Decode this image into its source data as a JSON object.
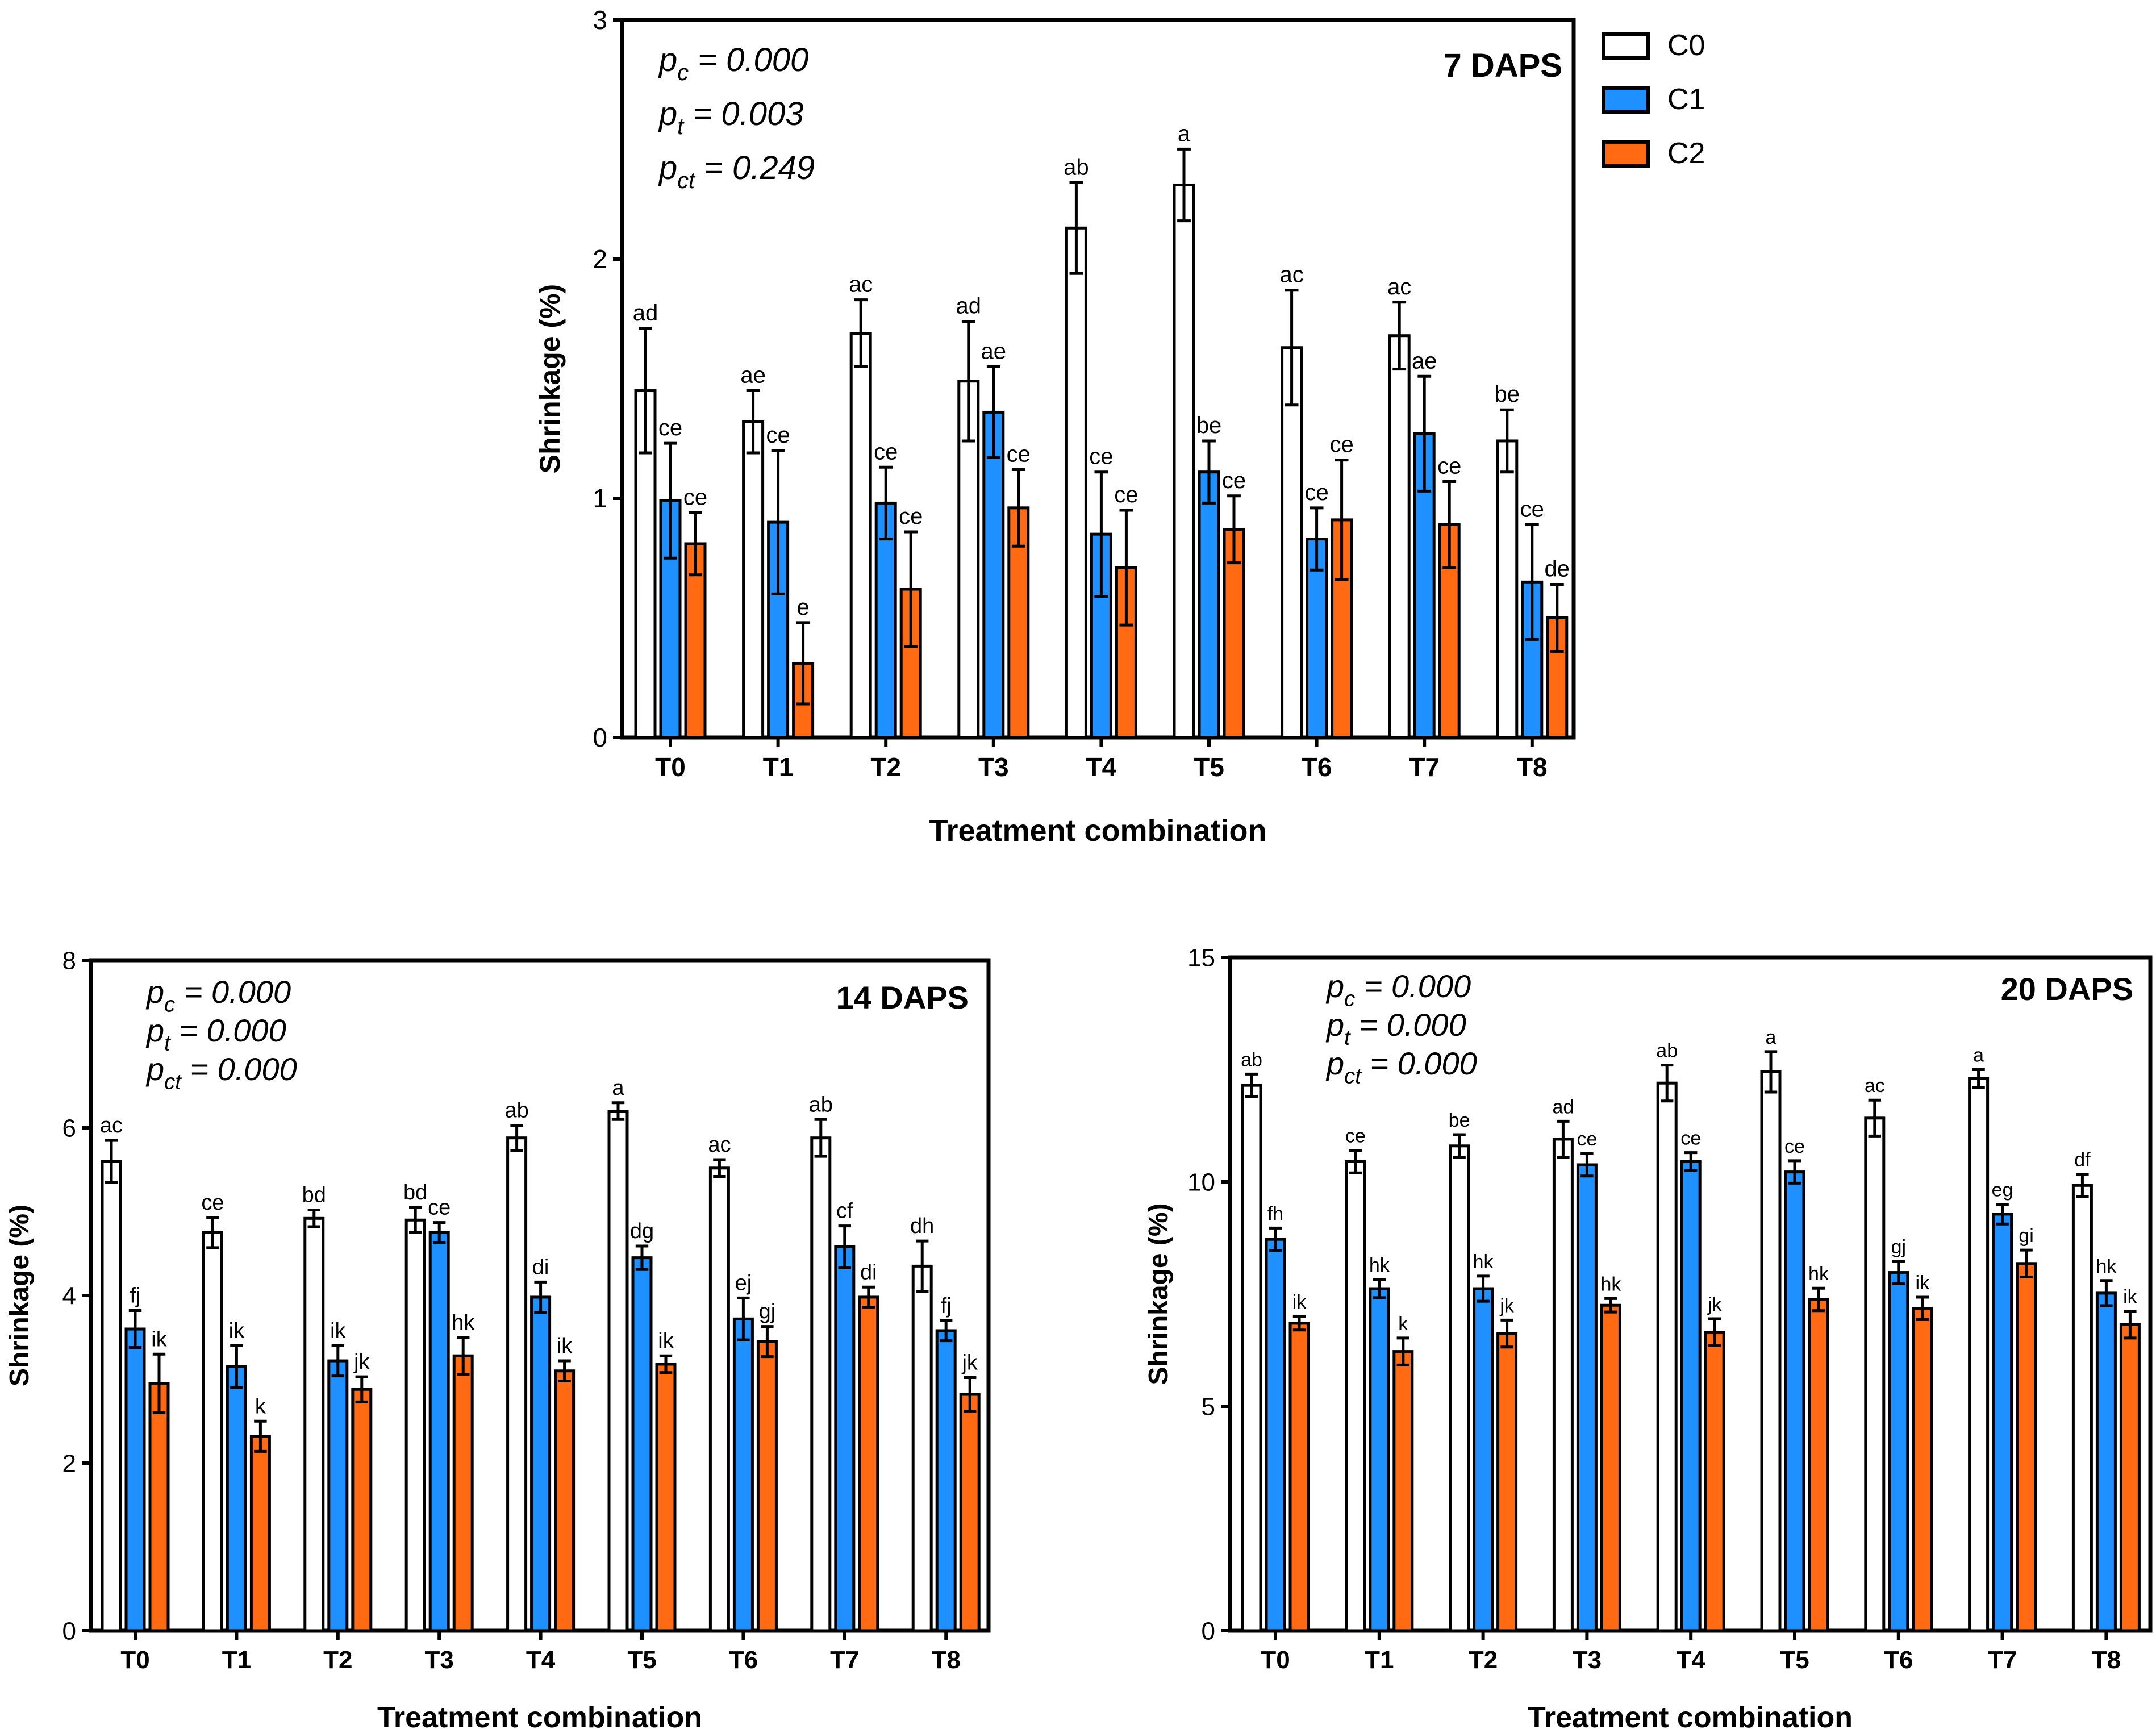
{
  "legend": {
    "entries": [
      {
        "name": "C0",
        "color": "#ffffff"
      },
      {
        "name": "C1",
        "color": "#1e90ff"
      },
      {
        "name": "C2",
        "color": "#ff6a13"
      }
    ]
  },
  "chart_data": [
    {
      "type": "bar",
      "title": "7 DAPS",
      "xlabel": "Treatment combination",
      "ylabel": "Shrinkage (%)",
      "ylim": [
        0,
        3
      ],
      "yticks": [
        "0",
        "1",
        "2",
        "3"
      ],
      "categories": [
        "T0",
        "T1",
        "T2",
        "T3",
        "T4",
        "T5",
        "T6",
        "T7",
        "T8"
      ],
      "stats": [
        {
          "label": "p",
          "sub": "c",
          "value": " = 0.000"
        },
        {
          "label": "p",
          "sub": "t",
          "value": " = 0.003"
        },
        {
          "label": "p",
          "sub": "ct",
          "value": " = 0.249"
        }
      ],
      "series": [
        {
          "name": "C0",
          "values": [
            1.45,
            1.32,
            1.69,
            1.49,
            2.13,
            2.31,
            1.63,
            1.68,
            1.24
          ],
          "errors": [
            0.26,
            0.13,
            0.14,
            0.25,
            0.19,
            0.15,
            0.24,
            0.14,
            0.13
          ],
          "letters": [
            "ad",
            "ae",
            "ac",
            "ad",
            "ab",
            "a",
            "ac",
            "ac",
            "be"
          ]
        },
        {
          "name": "C1",
          "values": [
            0.99,
            0.9,
            0.98,
            1.36,
            0.85,
            1.11,
            0.83,
            1.27,
            0.65
          ],
          "errors": [
            0.24,
            0.3,
            0.15,
            0.19,
            0.26,
            0.13,
            0.13,
            0.24,
            0.24
          ],
          "letters": [
            "ce",
            "ce",
            "ce",
            "ae",
            "ce",
            "be",
            "ce",
            "ae",
            "ce"
          ]
        },
        {
          "name": "C2",
          "values": [
            0.81,
            0.31,
            0.62,
            0.96,
            0.71,
            0.87,
            0.91,
            0.89,
            0.5
          ],
          "errors": [
            0.13,
            0.17,
            0.24,
            0.16,
            0.24,
            0.14,
            0.25,
            0.18,
            0.14
          ],
          "letters": [
            "ce",
            "e",
            "ce",
            "ce",
            "ce",
            "ce",
            "ce",
            "ce",
            "de"
          ]
        }
      ]
    },
    {
      "type": "bar",
      "title": "14 DAPS",
      "xlabel": "Treatment combination",
      "ylabel": "Shrinkage (%)",
      "ylim": [
        0,
        8
      ],
      "yticks": [
        "0",
        "2",
        "4",
        "6",
        "8"
      ],
      "categories": [
        "T0",
        "T1",
        "T2",
        "T3",
        "T4",
        "T5",
        "T6",
        "T7",
        "T8"
      ],
      "stats": [
        {
          "label": "p",
          "sub": "c",
          "value": " = 0.000"
        },
        {
          "label": "p",
          "sub": "t",
          "value": " = 0.000"
        },
        {
          "label": "p",
          "sub": "ct",
          "value": " = 0.000"
        }
      ],
      "series": [
        {
          "name": "C0",
          "values": [
            5.6,
            4.75,
            4.92,
            4.9,
            5.88,
            6.2,
            5.52,
            5.88,
            4.35
          ],
          "errors": [
            0.25,
            0.18,
            0.1,
            0.15,
            0.15,
            0.1,
            0.1,
            0.22,
            0.3
          ],
          "letters": [
            "ac",
            "ce",
            "bd",
            "bd",
            "ab",
            "a",
            "ac",
            "ab",
            "dh"
          ]
        },
        {
          "name": "C1",
          "values": [
            3.6,
            3.15,
            3.22,
            4.75,
            3.98,
            4.45,
            3.72,
            4.58,
            3.58
          ],
          "errors": [
            0.22,
            0.25,
            0.18,
            0.12,
            0.18,
            0.14,
            0.25,
            0.25,
            0.12
          ],
          "letters": [
            "fj",
            "ik",
            "ik",
            "ce",
            "di",
            "dg",
            "ej",
            "cf",
            "fj"
          ]
        },
        {
          "name": "C2",
          "values": [
            2.95,
            2.32,
            2.88,
            3.28,
            3.1,
            3.18,
            3.45,
            3.98,
            2.82
          ],
          "errors": [
            0.35,
            0.18,
            0.15,
            0.22,
            0.12,
            0.1,
            0.18,
            0.12,
            0.2
          ],
          "letters": [
            "ik",
            "k",
            "jk",
            "hk",
            "ik",
            "ik",
            "gj",
            "di",
            "jk"
          ]
        }
      ]
    },
    {
      "type": "bar",
      "title": "20 DAPS",
      "xlabel": "Treatment combination",
      "ylabel": "Shrinkage (%)",
      "ylim": [
        0,
        15
      ],
      "yticks": [
        "0",
        "5",
        "10",
        "15"
      ],
      "categories": [
        "T0",
        "T1",
        "T2",
        "T3",
        "T4",
        "T5",
        "T6",
        "T7",
        "T8"
      ],
      "stats": [
        {
          "label": "p",
          "sub": "c",
          "value": " = 0.000"
        },
        {
          "label": "p",
          "sub": "t",
          "value": " = 0.000"
        },
        {
          "label": "p",
          "sub": "ct",
          "value": " = 0.000"
        }
      ],
      "series": [
        {
          "name": "C0",
          "values": [
            12.15,
            10.45,
            10.8,
            10.95,
            12.2,
            12.45,
            11.42,
            12.3,
            9.92
          ],
          "errors": [
            0.25,
            0.25,
            0.25,
            0.4,
            0.4,
            0.45,
            0.4,
            0.2,
            0.25
          ],
          "letters": [
            "ab",
            "ce",
            "be",
            "ad",
            "ab",
            "a",
            "ac",
            "a",
            "df"
          ]
        },
        {
          "name": "C1",
          "values": [
            8.72,
            7.62,
            7.62,
            10.38,
            10.45,
            10.22,
            7.98,
            9.28,
            7.52
          ],
          "errors": [
            0.25,
            0.2,
            0.28,
            0.25,
            0.2,
            0.25,
            0.25,
            0.22,
            0.28
          ],
          "letters": [
            "fh",
            "hk",
            "hk",
            "ce",
            "ce",
            "ce",
            "gj",
            "eg",
            "hk"
          ]
        },
        {
          "name": "C2",
          "values": [
            6.85,
            6.22,
            6.62,
            7.25,
            6.65,
            7.38,
            7.18,
            8.18,
            6.82
          ],
          "errors": [
            0.15,
            0.3,
            0.3,
            0.15,
            0.3,
            0.25,
            0.25,
            0.3,
            0.3
          ],
          "letters": [
            "ik",
            "k",
            "jk",
            "hk",
            "jk",
            "hk",
            "ik",
            "gi",
            "ik"
          ]
        }
      ]
    }
  ]
}
